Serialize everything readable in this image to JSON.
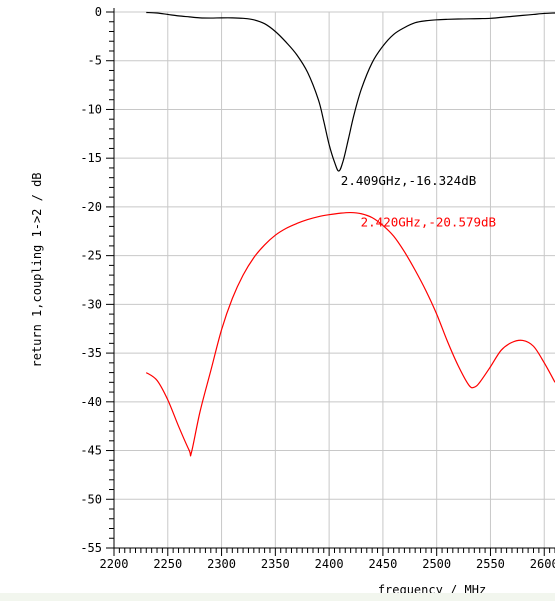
{
  "chart_data": {
    "type": "line",
    "title": "",
    "xlabel": "frequency / MHz",
    "ylabel": "return 1,coupling 1->2 / dB",
    "xlim": [
      2200,
      2610
    ],
    "ylim": [
      -55,
      0
    ],
    "x_ticks": [
      2200,
      2250,
      2300,
      2350,
      2400,
      2450,
      2500,
      2550,
      2600
    ],
    "x_tick_labels": [
      "2200",
      "2250",
      "2300",
      "2350",
      "2400",
      "2450",
      "2500",
      "2550",
      "2600"
    ],
    "y_ticks": [
      0,
      -5,
      -10,
      -15,
      -20,
      -25,
      -30,
      -35,
      -40,
      -45,
      -50,
      -55
    ],
    "y_tick_labels": [
      "0",
      "-5",
      "-10",
      "-15",
      "-20",
      "-25",
      "-30",
      "-35",
      "-40",
      "-45",
      "-50",
      "-55"
    ],
    "grid": true,
    "series": [
      {
        "color": "#000000",
        "x": [
          2230,
          2240,
          2250,
          2260,
          2270,
          2280,
          2290,
          2300,
          2310,
          2320,
          2330,
          2340,
          2350,
          2360,
          2370,
          2380,
          2390,
          2395,
          2400,
          2405,
          2409,
          2413,
          2418,
          2423,
          2430,
          2440,
          2450,
          2460,
          2470,
          2480,
          2490,
          2500,
          2510,
          2520,
          2530,
          2540,
          2550,
          2560,
          2570,
          2580,
          2590,
          2600,
          2610
        ],
        "y": [
          -0.05,
          -0.1,
          -0.25,
          -0.4,
          -0.5,
          -0.6,
          -0.62,
          -0.6,
          -0.6,
          -0.65,
          -0.8,
          -1.2,
          -2.0,
          -3.1,
          -4.4,
          -6.2,
          -9.0,
          -11.2,
          -13.6,
          -15.4,
          -16.324,
          -15.3,
          -13.0,
          -10.6,
          -7.9,
          -5.2,
          -3.5,
          -2.3,
          -1.6,
          -1.1,
          -0.9,
          -0.8,
          -0.75,
          -0.72,
          -0.7,
          -0.68,
          -0.65,
          -0.55,
          -0.45,
          -0.35,
          -0.25,
          -0.15,
          -0.1
        ]
      },
      {
        "color": "#ff0000",
        "x": [
          2230,
          2240,
          2250,
          2260,
          2270,
          2272,
          2280,
          2290,
          2300,
          2310,
          2320,
          2330,
          2340,
          2350,
          2360,
          2370,
          2380,
          2390,
          2400,
          2410,
          2420,
          2430,
          2440,
          2450,
          2460,
          2470,
          2480,
          2490,
          2500,
          2510,
          2520,
          2530,
          2535,
          2540,
          2550,
          2560,
          2570,
          2580,
          2590,
          2600,
          2610
        ],
        "y": [
          -37.0,
          -37.8,
          -39.8,
          -42.5,
          -45.0,
          -45.2,
          -41.0,
          -36.8,
          -32.6,
          -29.4,
          -27.0,
          -25.2,
          -23.9,
          -22.9,
          -22.2,
          -21.7,
          -21.3,
          -21.0,
          -20.8,
          -20.65,
          -20.579,
          -20.7,
          -21.1,
          -21.9,
          -23.0,
          -24.6,
          -26.5,
          -28.6,
          -31.0,
          -33.8,
          -36.3,
          -38.3,
          -38.5,
          -38.0,
          -36.4,
          -34.7,
          -33.9,
          -33.7,
          -34.3,
          -36.0,
          -38.0
        ]
      }
    ],
    "annotations": [
      {
        "text": "2.409GHz,-16.324dB",
        "x": 2409,
        "y": -16.324,
        "color": "#000000"
      },
      {
        "text": "2.420GHz,-20.579dB",
        "x": 2420,
        "y": -20.579,
        "color": "#ff0000"
      }
    ]
  }
}
